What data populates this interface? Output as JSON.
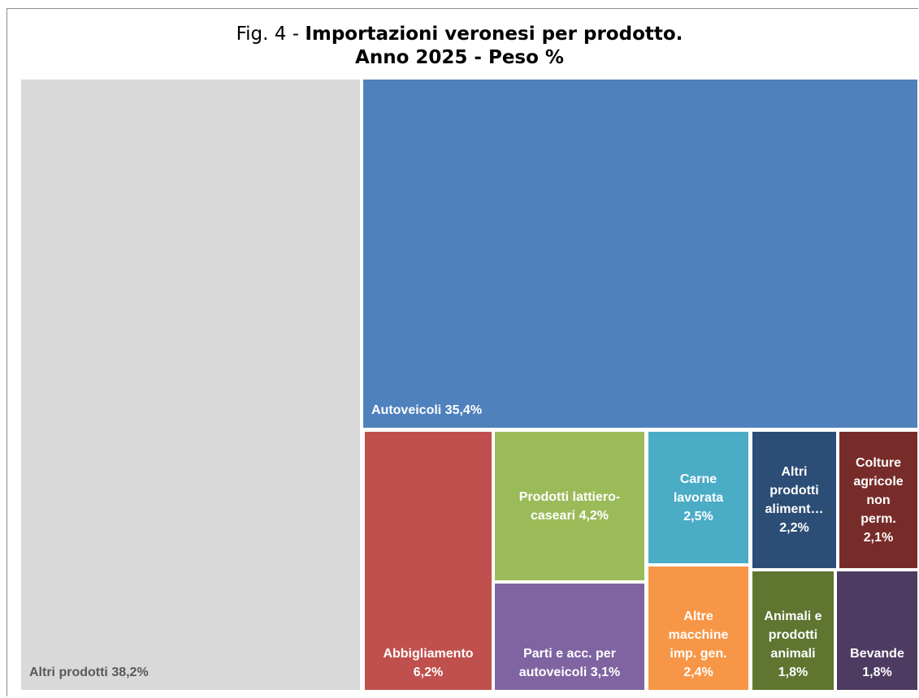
{
  "title_prefix": "Fig. 4 - ",
  "title_bold": "Importazioni veronesi per prodotto.",
  "subtitle": "Anno 2025 - Peso %",
  "chart_data": {
    "type": "treemap",
    "unit": "%",
    "items": [
      {
        "name": "Altri prodotti",
        "value": 38.2,
        "label_lines": [
          "Altri prodotti 38,2%"
        ],
        "color": "#d9d9d9"
      },
      {
        "name": "Autoveicoli",
        "value": 35.4,
        "label_lines": [
          "Autoveicoli 35,4%"
        ],
        "color": "#4f81bd"
      },
      {
        "name": "Abbigliamento",
        "value": 6.2,
        "label_lines": [
          "Abbigliamento",
          "6,2%"
        ],
        "color": "#c0504d"
      },
      {
        "name": "Prodotti lattiero-caseari",
        "value": 4.2,
        "label_lines": [
          "Prodotti lattiero-",
          "caseari 4,2%"
        ],
        "color": "#9bbb59"
      },
      {
        "name": "Parti e acc. per autoveicoli",
        "value": 3.1,
        "label_lines": [
          "Parti e acc. per",
          "autoveicoli 3,1%"
        ],
        "color": "#8064a2"
      },
      {
        "name": "Carne lavorata",
        "value": 2.5,
        "label_lines": [
          "Carne",
          "lavorata",
          "2,5%"
        ],
        "color": "#4bacc6"
      },
      {
        "name": "Altre macchine imp. gen.",
        "value": 2.4,
        "label_lines": [
          "Altre",
          "macchine",
          "imp. gen.",
          "2,4%"
        ],
        "color": "#f79646"
      },
      {
        "name": "Altri prodotti aliment…",
        "value": 2.2,
        "label_lines": [
          "Altri",
          "prodotti",
          "aliment…",
          "2,2%"
        ],
        "color": "#2c4d75"
      },
      {
        "name": "Colture agricole non perm.",
        "value": 2.1,
        "label_lines": [
          "Colture",
          "agricole",
          "non",
          "perm.",
          "2,1%"
        ],
        "color": "#772c2a"
      },
      {
        "name": "Animali e prodotti animali",
        "value": 1.8,
        "label_lines": [
          "Animali e",
          "prodotti",
          "animali",
          "1,8%"
        ],
        "color": "#5f7530"
      },
      {
        "name": "Bevande",
        "value": 1.8,
        "label_lines": [
          "Bevande",
          "1,8%"
        ],
        "color": "#4d3b62"
      }
    ]
  }
}
